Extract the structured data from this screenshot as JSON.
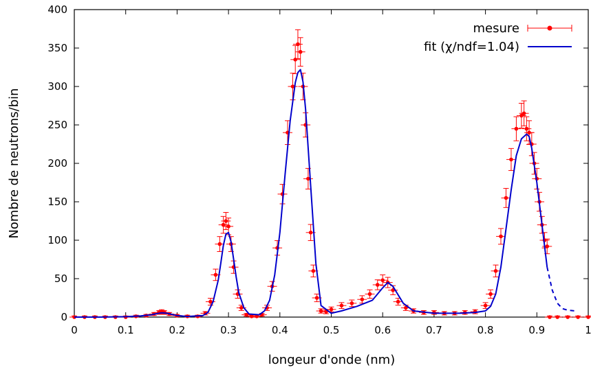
{
  "chart_data": {
    "type": "scatter",
    "xlabel": "longeur d'onde (nm)",
    "ylabel": "Nombre de neutrons/bin",
    "xlim": [
      0,
      1
    ],
    "ylim": [
      0,
      400
    ],
    "xticks": [
      "0",
      "0.1",
      "0.2",
      "0.3",
      "0.4",
      "0.5",
      "0.6",
      "0.7",
      "0.8",
      "0.9",
      "1"
    ],
    "yticks": [
      "0",
      "50",
      "100",
      "150",
      "200",
      "250",
      "300",
      "350",
      "400"
    ],
    "legend_position": "top-right",
    "grid": false,
    "colors": {
      "measure": "#ff0000",
      "fit": "#0000cc"
    },
    "series": [
      {
        "name": "mesure",
        "style": "points with error bars",
        "x": [
          0.0,
          0.02,
          0.04,
          0.06,
          0.08,
          0.1,
          0.12,
          0.14,
          0.155,
          0.165,
          0.17,
          0.175,
          0.185,
          0.2,
          0.22,
          0.24,
          0.255,
          0.265,
          0.275,
          0.283,
          0.29,
          0.295,
          0.3,
          0.305,
          0.31,
          0.318,
          0.325,
          0.335,
          0.345,
          0.355,
          0.365,
          0.375,
          0.385,
          0.395,
          0.405,
          0.415,
          0.425,
          0.43,
          0.435,
          0.44,
          0.445,
          0.45,
          0.455,
          0.46,
          0.465,
          0.472,
          0.48,
          0.49,
          0.5,
          0.52,
          0.54,
          0.56,
          0.575,
          0.59,
          0.6,
          0.61,
          0.62,
          0.63,
          0.645,
          0.66,
          0.68,
          0.7,
          0.72,
          0.74,
          0.76,
          0.78,
          0.8,
          0.81,
          0.82,
          0.83,
          0.84,
          0.85,
          0.86,
          0.87,
          0.875,
          0.88,
          0.885,
          0.89,
          0.895,
          0.9,
          0.905,
          0.91,
          0.915,
          0.92,
          0.925,
          0.94,
          0.96,
          0.98,
          1.0
        ],
        "y": [
          0,
          0,
          0,
          0,
          0,
          0,
          1,
          2,
          4,
          6,
          7,
          6,
          4,
          2,
          1,
          1,
          5,
          20,
          55,
          95,
          120,
          125,
          118,
          95,
          65,
          30,
          12,
          3,
          1,
          1,
          3,
          12,
          40,
          90,
          160,
          240,
          300,
          335,
          355,
          345,
          300,
          250,
          180,
          110,
          60,
          25,
          8,
          7,
          10,
          15,
          18,
          23,
          30,
          42,
          48,
          45,
          35,
          20,
          12,
          8,
          6,
          6,
          5,
          5,
          6,
          7,
          15,
          30,
          60,
          105,
          155,
          205,
          245,
          262,
          265,
          245,
          240,
          225,
          200,
          180,
          150,
          120,
          100,
          92,
          0,
          0,
          0,
          0,
          0
        ]
      },
      {
        "name": "fit (χ/ndf=1.04)",
        "style": "solid line, dashed beyond data",
        "x": [
          0.0,
          0.05,
          0.1,
          0.13,
          0.15,
          0.16,
          0.17,
          0.18,
          0.19,
          0.2,
          0.22,
          0.25,
          0.26,
          0.27,
          0.28,
          0.285,
          0.29,
          0.295,
          0.3,
          0.305,
          0.31,
          0.315,
          0.32,
          0.33,
          0.34,
          0.36,
          0.37,
          0.38,
          0.39,
          0.4,
          0.41,
          0.42,
          0.43,
          0.435,
          0.44,
          0.445,
          0.45,
          0.46,
          0.47,
          0.48,
          0.5,
          0.52,
          0.55,
          0.58,
          0.6,
          0.61,
          0.62,
          0.64,
          0.66,
          0.7,
          0.75,
          0.78,
          0.8,
          0.81,
          0.82,
          0.83,
          0.84,
          0.85,
          0.86,
          0.87,
          0.88,
          0.885,
          0.89,
          0.9,
          0.91,
          0.92,
          0.93,
          0.94,
          0.95,
          0.96,
          0.975
        ],
        "y": [
          0,
          0,
          0.5,
          1.5,
          3,
          4.5,
          5.5,
          5,
          3.5,
          2,
          0.8,
          2,
          6,
          20,
          48,
          70,
          93,
          108,
          110,
          98,
          75,
          52,
          32,
          12,
          4,
          3,
          8,
          22,
          55,
          110,
          185,
          255,
          305,
          318,
          322,
          306,
          270,
          170,
          70,
          15,
          5,
          8,
          14,
          22,
          38,
          45,
          40,
          18,
          8,
          5,
          5,
          6,
          8,
          14,
          30,
          65,
          115,
          165,
          210,
          232,
          238,
          235,
          220,
          175,
          120,
          65,
          35,
          18,
          11,
          9,
          8
        ]
      }
    ]
  }
}
